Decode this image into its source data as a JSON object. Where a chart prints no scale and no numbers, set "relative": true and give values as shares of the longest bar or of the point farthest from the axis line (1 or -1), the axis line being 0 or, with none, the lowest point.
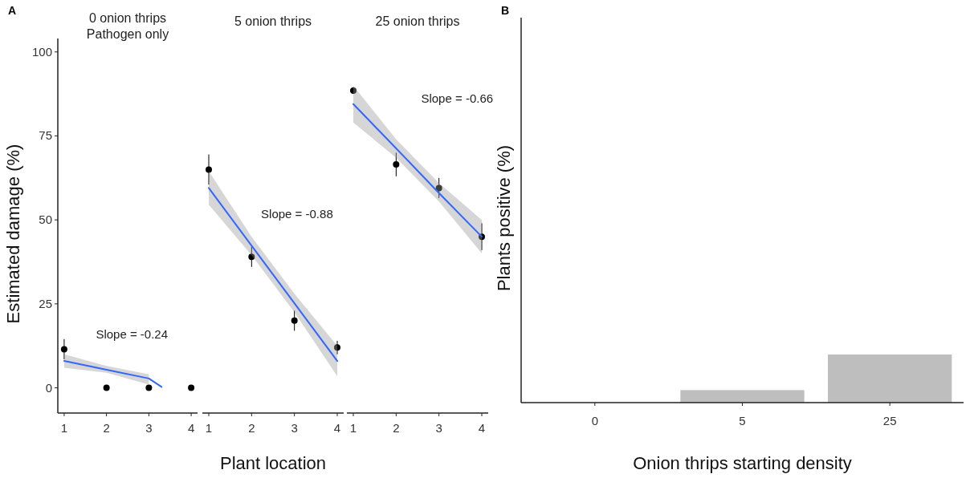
{
  "chart_data": [
    {
      "type": "scatter",
      "title": "0 onion thrips",
      "subtitle": "Pathogen only",
      "ylabel": "Estimated damage (%)",
      "x": [
        1,
        2,
        3,
        4
      ],
      "xlim": [
        0.85,
        4.15
      ],
      "xticks": [
        1,
        2,
        3,
        4
      ],
      "ylim": [
        -7.5,
        104
      ],
      "yticks": [
        0,
        25,
        50,
        75,
        100
      ],
      "annotations": [
        "A",
        "Slope = -0.24"
      ],
      "series": [
        {
          "type": "scatter",
          "color": "#000000",
          "marker": "circle",
          "values": [
            11.5,
            0,
            0,
            0
          ],
          "errors": [
            3,
            null,
            null,
            null
          ]
        },
        {
          "type": "line",
          "color": "#3366ff",
          "x": [
            1,
            2,
            3,
            3.3
          ],
          "values": [
            8,
            5.4,
            2.8,
            0.3
          ],
          "lower": [
            6,
            4.5,
            1,
            null
          ],
          "upper": [
            10,
            6.5,
            4,
            null
          ]
        }
      ]
    },
    {
      "type": "scatter",
      "title": "5 onion thrips",
      "xlabel": "Plant location",
      "x": [
        1,
        2,
        3,
        4
      ],
      "xlim": [
        0.85,
        4.15
      ],
      "xticks": [
        1,
        2,
        3,
        4
      ],
      "ylim": [
        -7.5,
        100
      ],
      "yticks": [
        0,
        25,
        50,
        75,
        100
      ],
      "tick_labels": "x",
      "annotations": [
        "Slope = -0.88"
      ],
      "series": [
        {
          "type": "scatter",
          "color": "#000000",
          "marker": "circle",
          "values": [
            65,
            39,
            20,
            12
          ],
          "errors": [
            4.5,
            3,
            3,
            2
          ]
        },
        {
          "type": "line",
          "color": "#3366ff",
          "x": [
            1,
            2,
            3,
            4
          ],
          "values": [
            59.5,
            42.3,
            25.2,
            8
          ],
          "lower": [
            54.5,
            39.5,
            22.5,
            3.5
          ],
          "upper": [
            64.5,
            45,
            28,
            12.5
          ]
        }
      ]
    },
    {
      "type": "scatter",
      "title": "25 onion thrips",
      "x": [
        1,
        2,
        3,
        4
      ],
      "xlim": [
        0.85,
        4.15
      ],
      "xticks": [
        1,
        2,
        3,
        4
      ],
      "ylim": [
        -7.5,
        100
      ],
      "yticks": [
        0,
        25,
        50,
        75,
        100
      ],
      "tick_labels": "x",
      "annotations": [
        "Slope = -0.66"
      ],
      "series": [
        {
          "type": "scatter",
          "color": "#000000",
          "marker": "circle",
          "values": [
            88.5,
            66.5,
            59.5,
            45
          ],
          "errors": [
            1,
            3.5,
            3,
            4
          ]
        },
        {
          "type": "line",
          "color": "#3366ff",
          "x": [
            1,
            2,
            3,
            4
          ],
          "values": [
            84.5,
            71.3,
            58,
            45
          ],
          "lower": [
            79,
            68.5,
            55.5,
            40
          ],
          "upper": [
            90,
            74,
            61,
            50
          ]
        }
      ]
    },
    {
      "type": "bar",
      "xlabel": "Onion thrips starting density",
      "ylabel": "Plants positive (%)",
      "categories": [
        "0",
        "5",
        "25"
      ],
      "values": [
        0,
        0.26,
        1
      ],
      "color": "#bebebe",
      "relative": true,
      "annotations": [
        "B"
      ]
    }
  ]
}
